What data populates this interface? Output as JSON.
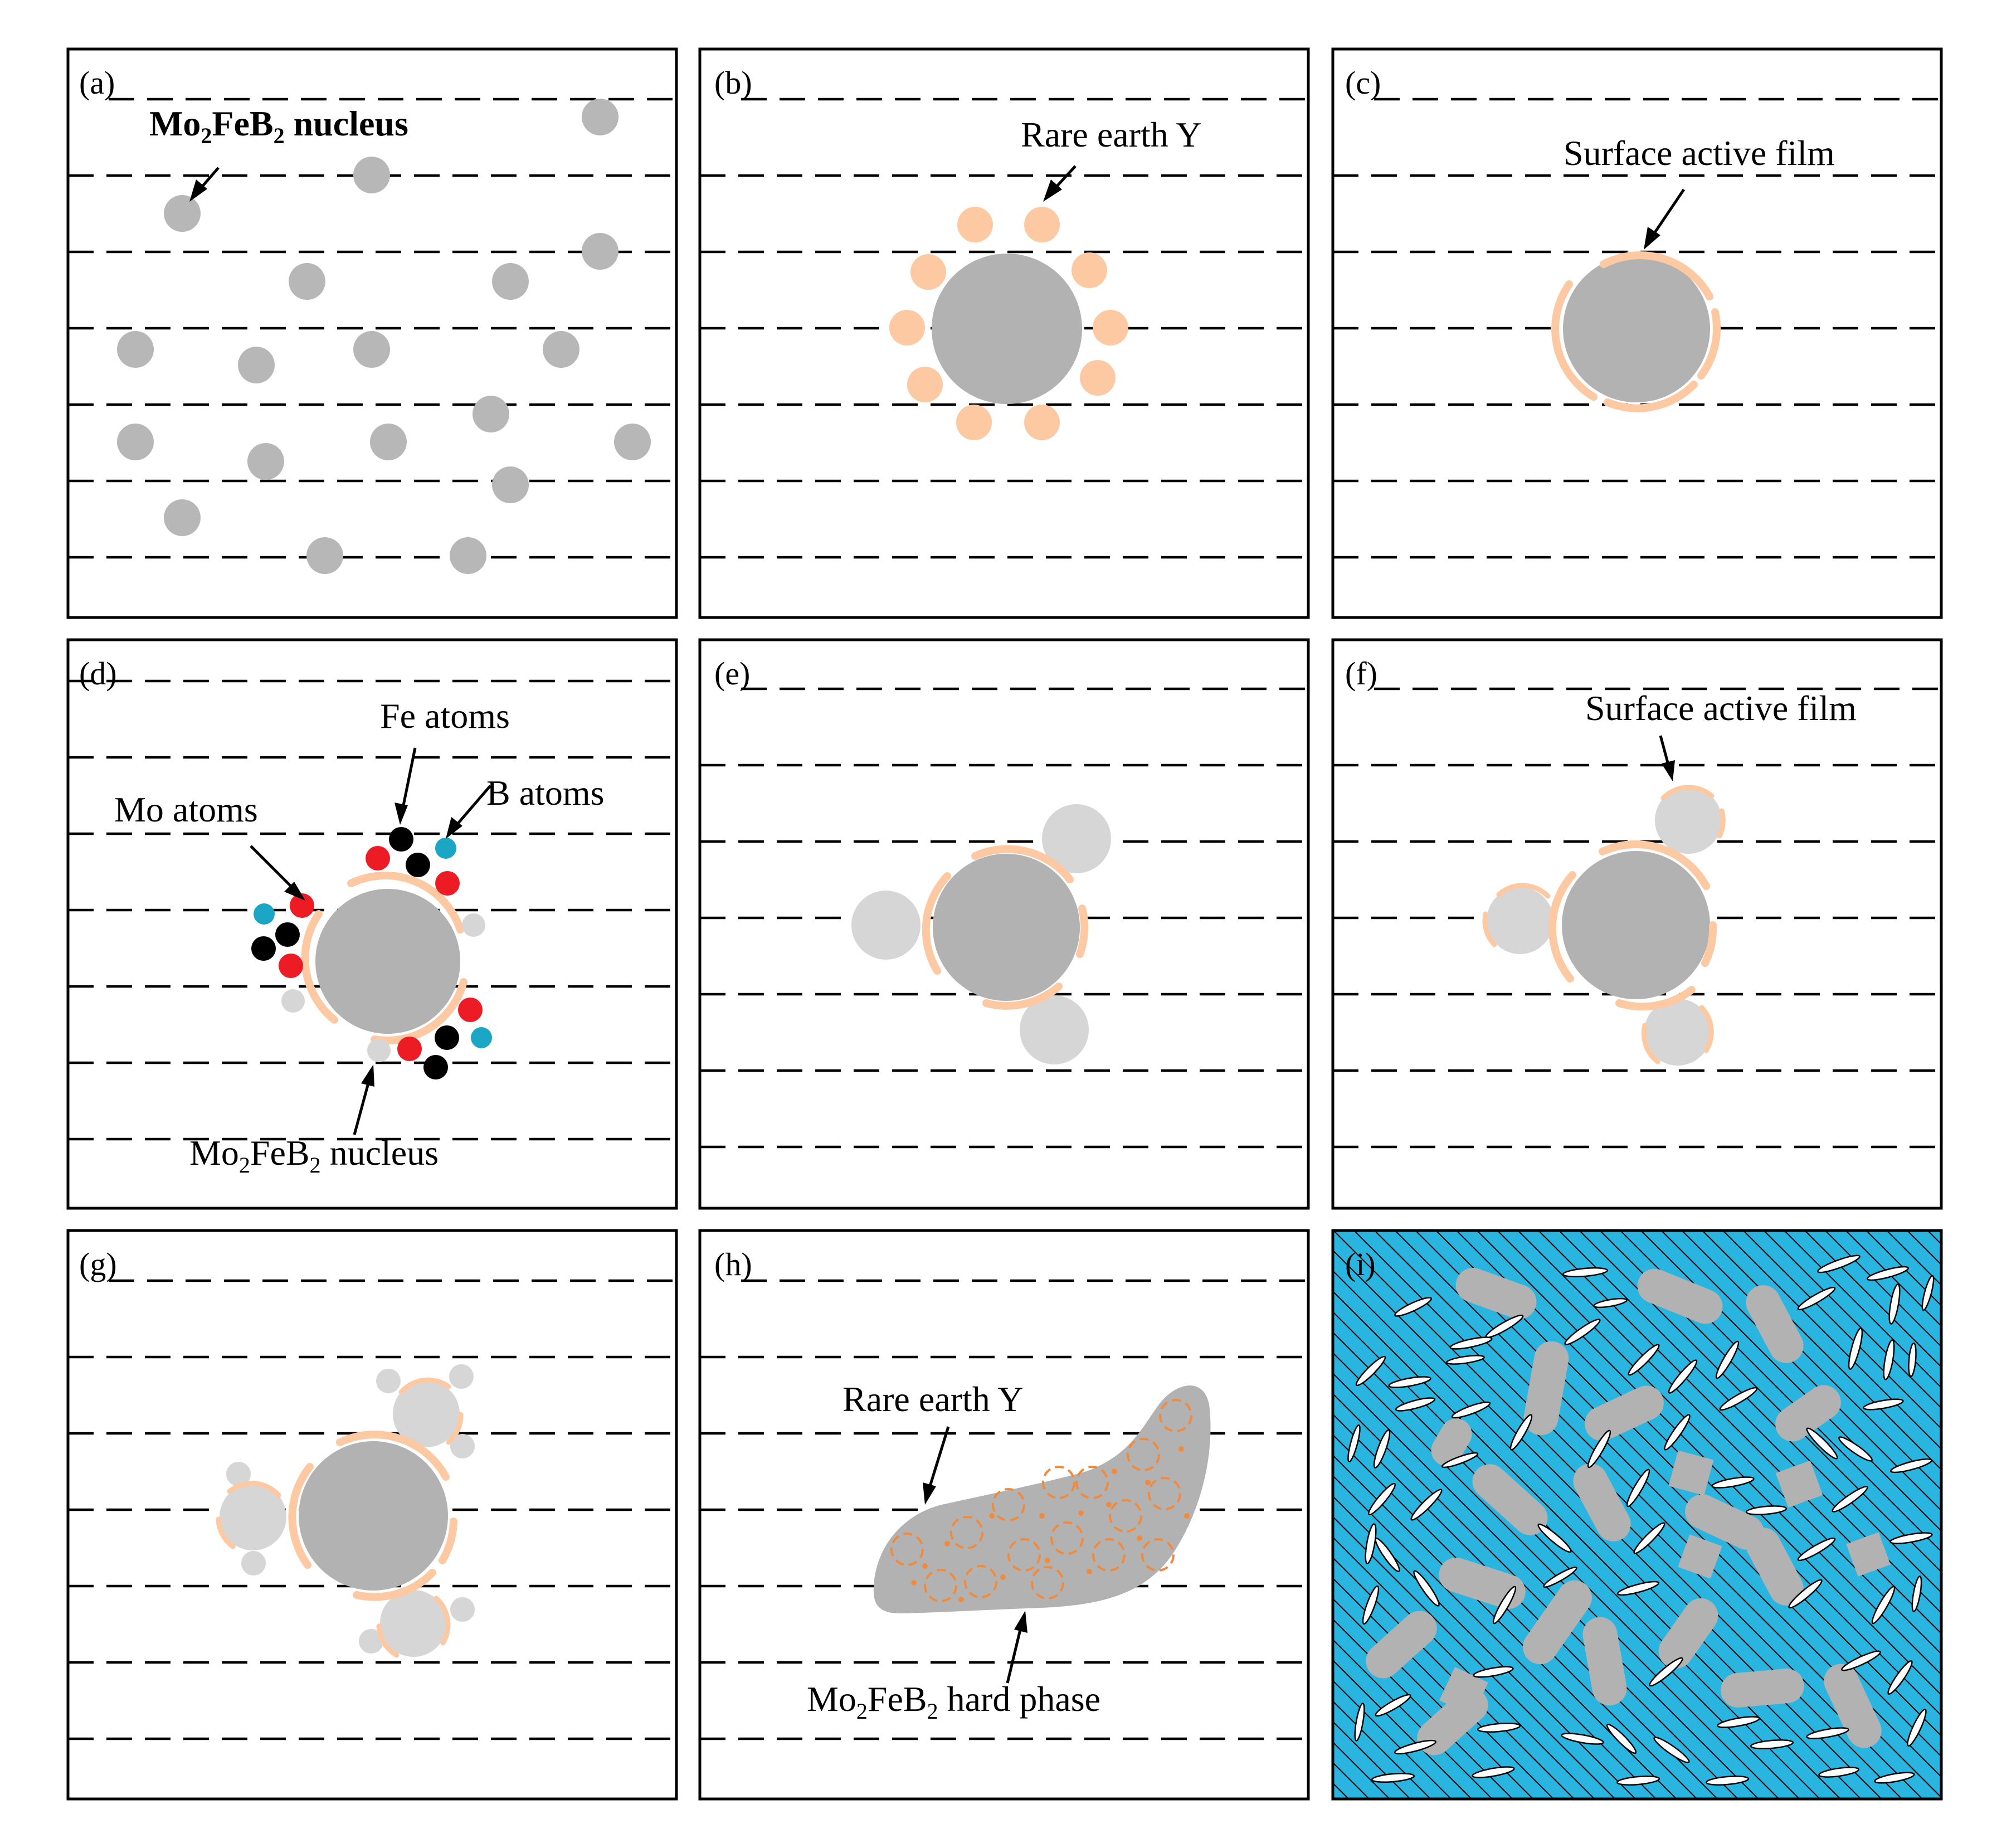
{
  "figure": {
    "panels": [
      {
        "id": "a",
        "label": "(a)"
      },
      {
        "id": "b",
        "label": "(b)"
      },
      {
        "id": "c",
        "label": "(c)"
      },
      {
        "id": "d",
        "label": "(d)"
      },
      {
        "id": "e",
        "label": "(e)"
      },
      {
        "id": "f",
        "label": "(f)"
      },
      {
        "id": "g",
        "label": "(g)"
      },
      {
        "id": "h",
        "label": "(h)"
      },
      {
        "id": "i",
        "label": "(i)"
      }
    ],
    "annotations": {
      "a_nucleus": {
        "base": "Mo",
        "sub1": "2",
        "mid": "FeB",
        "sub2": "2",
        "tail": " nucleus"
      },
      "b_rare_earth": "Rare earth Y",
      "c_film": "Surface active film",
      "d_fe": "Fe atoms",
      "d_b": "B atoms",
      "d_mo": "Mo atoms",
      "d_nucleus": {
        "base": "Mo",
        "sub1": "2",
        "mid": "FeB",
        "sub2": "2",
        "tail": " nucleus"
      },
      "f_film": "Surface active film",
      "h_rare_earth": "Rare earth Y",
      "h_hard_phase": {
        "base": "Mo",
        "sub1": "2",
        "mid": "FeB",
        "sub2": "2",
        "tail": " hard phase"
      }
    },
    "colors": {
      "nucleus_gray": "#b7b7b7",
      "rare_earth_Y": "#fdc9a2",
      "Mo_atom": "#ed1c24",
      "Fe_atom": "#000000",
      "B_atom": "#1aa6c4",
      "matrix_i": "#29b5e0",
      "Y_ring_h": "#f28a3c"
    }
  }
}
